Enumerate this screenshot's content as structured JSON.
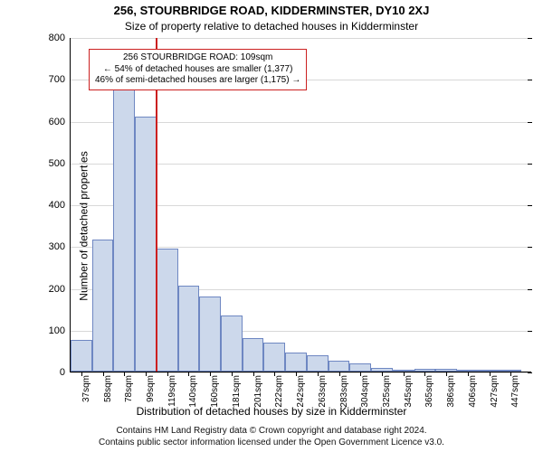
{
  "title": "256, STOURBRIDGE ROAD, KIDDERMINSTER, DY10 2XJ",
  "subtitle": "Size of property relative to detached houses in Kidderminster",
  "yaxis_label": "Number of detached properties",
  "xaxis_label": "Distribution of detached houses by size in Kidderminster",
  "footer_line1": "Contains HM Land Registry data © Crown copyright and database right 2024.",
  "footer_line2": "Contains public sector information licensed under the Open Government Licence v3.0.",
  "chart": {
    "type": "histogram",
    "ylim": [
      0,
      800
    ],
    "yticks": [
      0,
      100,
      200,
      300,
      400,
      500,
      600,
      700,
      800
    ],
    "xmin": 30,
    "xmax": 460,
    "bars": [
      {
        "from": 30,
        "to": 50,
        "label": "37sqm",
        "value": 75
      },
      {
        "from": 50,
        "to": 70,
        "label": "58sqm",
        "value": 315
      },
      {
        "from": 70,
        "to": 90,
        "label": "78sqm",
        "value": 680
      },
      {
        "from": 90,
        "to": 110,
        "label": "99sqm",
        "value": 610
      },
      {
        "from": 110,
        "to": 130,
        "label": "119sqm",
        "value": 295
      },
      {
        "from": 130,
        "to": 150,
        "label": "140sqm",
        "value": 205
      },
      {
        "from": 150,
        "to": 170,
        "label": "160sqm",
        "value": 180
      },
      {
        "from": 170,
        "to": 190,
        "label": "181sqm",
        "value": 135
      },
      {
        "from": 190,
        "to": 210,
        "label": "201sqm",
        "value": 80
      },
      {
        "from": 210,
        "to": 230,
        "label": "222sqm",
        "value": 70
      },
      {
        "from": 230,
        "to": 250,
        "label": "242sqm",
        "value": 45
      },
      {
        "from": 250,
        "to": 270,
        "label": "263sqm",
        "value": 40
      },
      {
        "from": 270,
        "to": 290,
        "label": "283sqm",
        "value": 25
      },
      {
        "from": 290,
        "to": 310,
        "label": "304sqm",
        "value": 20
      },
      {
        "from": 310,
        "to": 330,
        "label": "325sqm",
        "value": 8
      },
      {
        "from": 330,
        "to": 350,
        "label": "345sqm",
        "value": 5
      },
      {
        "from": 350,
        "to": 370,
        "label": "365sqm",
        "value": 7
      },
      {
        "from": 370,
        "to": 390,
        "label": "386sqm",
        "value": 6
      },
      {
        "from": 390,
        "to": 410,
        "label": "406sqm",
        "value": 5
      },
      {
        "from": 410,
        "to": 430,
        "label": "427sqm",
        "value": 3
      },
      {
        "from": 430,
        "to": 450,
        "label": "447sqm",
        "value": 4
      }
    ],
    "marker_x": 109,
    "bar_fill": "#ccd8eb",
    "bar_border": "#6e87c2",
    "grid_color": "#d8d8d8",
    "marker_color": "#cc2020",
    "background_color": "#ffffff"
  },
  "annotation": {
    "line1": "256 STOURBRIDGE ROAD: 109sqm",
    "line2": "← 54% of detached houses are smaller (1,377)",
    "line3": "46% of semi-detached houses are larger (1,175) →"
  }
}
